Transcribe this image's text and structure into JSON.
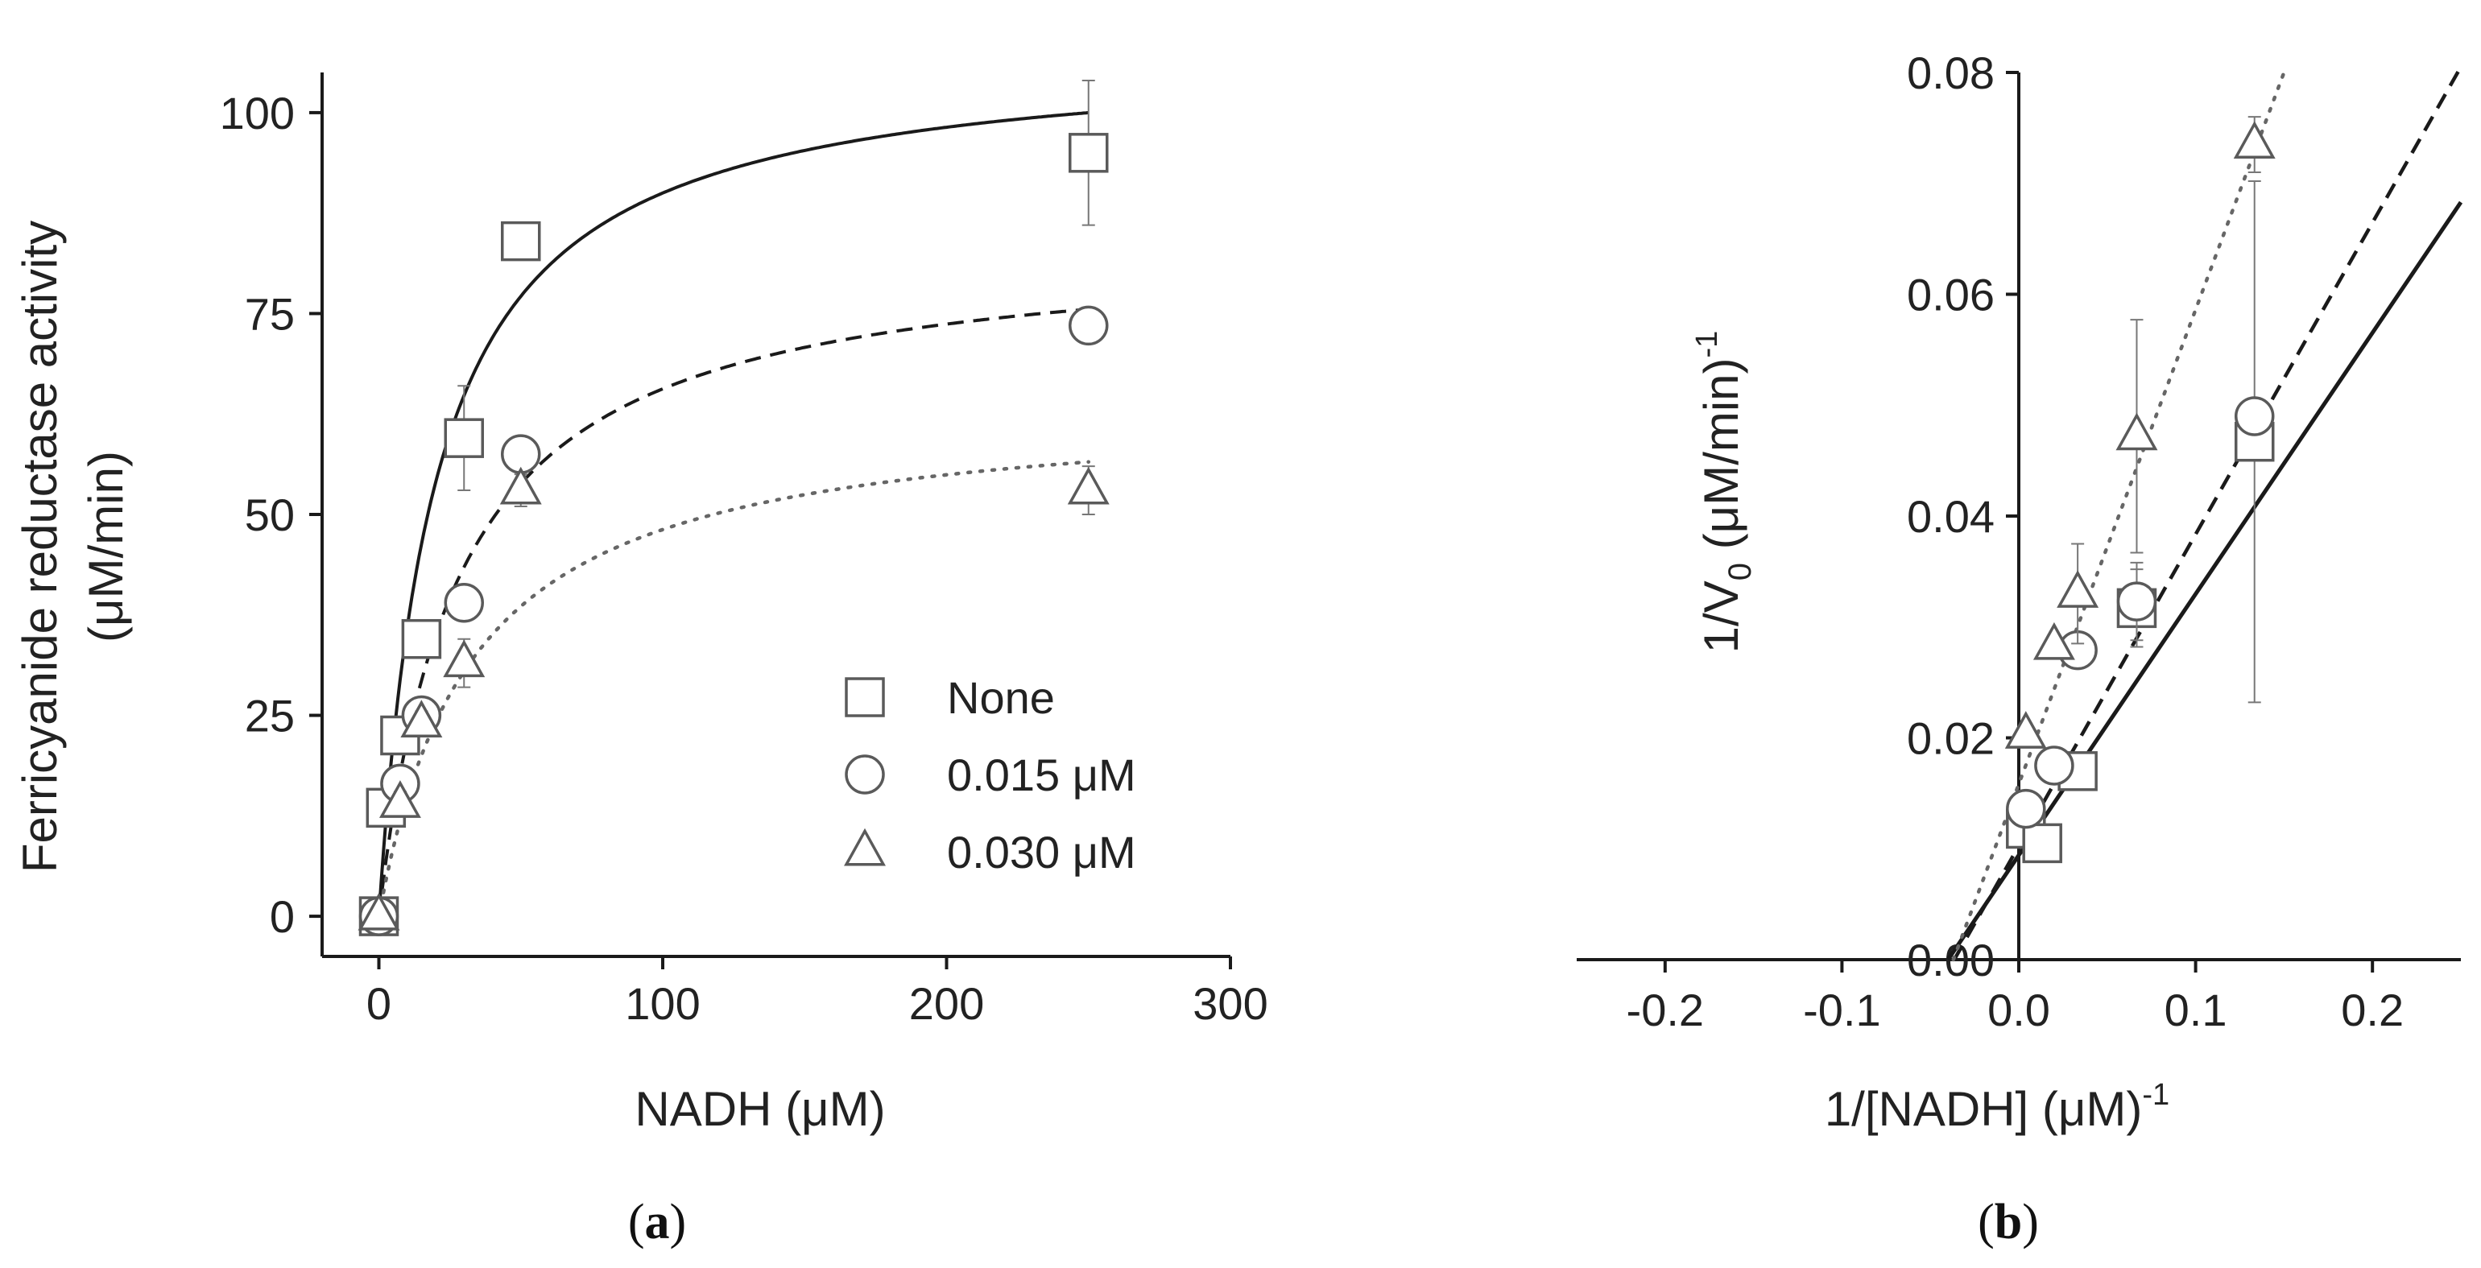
{
  "chart_data": [
    {
      "panel": "(a)",
      "panel_letter": "a",
      "type": "scatter",
      "title": "",
      "xlabel": "NADH (μM)",
      "ylabel_line1": "Ferricyanide reductase activity",
      "ylabel_line2": "(μM/min)",
      "xlim": [
        -20,
        300
      ],
      "ylim": [
        -5,
        105
      ],
      "xticks": [
        0,
        100,
        200,
        300
      ],
      "yticks": [
        0,
        25,
        50,
        75,
        100
      ],
      "grid": false,
      "legend_position": "center-right",
      "series": [
        {
          "name": "None",
          "marker": "square",
          "fit_line": "solid",
          "fit_vmax": 108,
          "fit_km": 20,
          "points": [
            {
              "x": 0,
              "y": 0,
              "err": 1
            },
            {
              "x": 2.5,
              "y": 13.5,
              "err": 1
            },
            {
              "x": 7.5,
              "y": 22.5,
              "err": 1.5
            },
            {
              "x": 15,
              "y": 34.5,
              "err": 1.5
            },
            {
              "x": 30,
              "y": 59.5,
              "err": 6.5
            },
            {
              "x": 50,
              "y": 84,
              "err": 1
            },
            {
              "x": 250,
              "y": 95,
              "err": 9
            }
          ]
        },
        {
          "name": "0.015 μM",
          "marker": "circle",
          "fit_line": "dashed",
          "fit_vmax": 84,
          "fit_km": 28,
          "points": [
            {
              "x": 0,
              "y": 0,
              "err": 1
            },
            {
              "x": 7.5,
              "y": 16.5,
              "err": 1.5
            },
            {
              "x": 15,
              "y": 25,
              "err": 1.5
            },
            {
              "x": 30,
              "y": 39,
              "err": 2
            },
            {
              "x": 50,
              "y": 57.5,
              "err": 2
            },
            {
              "x": 250,
              "y": 73.5,
              "err": 2
            }
          ]
        },
        {
          "name": "0.030 μM",
          "marker": "triangle",
          "fit_line": "dotted",
          "fit_vmax": 64,
          "fit_km": 33,
          "points": [
            {
              "x": 0,
              "y": 0,
              "err": 1
            },
            {
              "x": 7.5,
              "y": 14,
              "err": 1.5
            },
            {
              "x": 15,
              "y": 24,
              "err": 1.5
            },
            {
              "x": 30,
              "y": 31.5,
              "err": 3
            },
            {
              "x": 50,
              "y": 53,
              "err": 2
            },
            {
              "x": 250,
              "y": 53,
              "err": 3
            }
          ]
        }
      ]
    },
    {
      "panel": "(b)",
      "panel_letter": "b",
      "type": "scatter",
      "title": "",
      "xlabel_main": "1/[NADH] (μM)",
      "xlabel_sup": "-1",
      "ylabel_main": "1/V",
      "ylabel_sub": "0",
      "ylabel_rest": " (μM/min)",
      "ylabel_sup": "-1",
      "xlim": [
        -0.25,
        0.25
      ],
      "ylim": [
        0,
        0.08
      ],
      "xticks": [
        -0.2,
        -0.1,
        0.0,
        0.1,
        0.2
      ],
      "xtick_labels": [
        "-0.2",
        "-0.1",
        "0.0",
        "0.1",
        "0.2"
      ],
      "yticks": [
        0.0,
        0.02,
        0.04,
        0.06,
        0.08
      ],
      "ytick_labels": [
        "0.00",
        "0.02",
        "0.04",
        "0.06",
        "0.08"
      ],
      "grid": false,
      "series": [
        {
          "marker": "square",
          "fit_line": "solid",
          "line_x": [
            -0.04,
            0.25
          ],
          "line_y": [
            0.0,
            0.0683
          ],
          "points": [
            {
              "x": 0.004,
              "y": 0.0118,
              "err": 0.001
            },
            {
              "x": 0.0133,
              "y": 0.0105,
              "err": 0.001
            },
            {
              "x": 0.0333,
              "y": 0.017,
              "err": 0.0015
            },
            {
              "x": 0.0667,
              "y": 0.0317,
              "err": 0.0035
            },
            {
              "x": 0.1333,
              "y": 0.0467,
              "err": 0.0235
            }
          ]
        },
        {
          "marker": "circle",
          "fit_line": "dashed",
          "line_x": [
            -0.0365,
            0.25
          ],
          "line_y": [
            0.0,
            0.0805
          ],
          "points": [
            {
              "x": 0.004,
              "y": 0.0136,
              "err": 0.0005
            },
            {
              "x": 0.02,
              "y": 0.0175,
              "err": 0.001
            },
            {
              "x": 0.0333,
              "y": 0.0279,
              "err": 0.001
            },
            {
              "x": 0.0667,
              "y": 0.0323,
              "err": 0.0035
            },
            {
              "x": 0.1333,
              "y": 0.049,
              "err": 0.001
            }
          ]
        },
        {
          "marker": "triangle",
          "fit_line": "dotted",
          "line_x": [
            -0.037,
            0.15
          ],
          "line_y": [
            0.0,
            0.08
          ],
          "points": [
            {
              "x": 0.004,
              "y": 0.0203,
              "err": 0.001
            },
            {
              "x": 0.02,
              "y": 0.0283,
              "err": 0.001
            },
            {
              "x": 0.0333,
              "y": 0.033,
              "err": 0.0045
            },
            {
              "x": 0.0667,
              "y": 0.0472,
              "err": 0.0105
            },
            {
              "x": 0.1333,
              "y": 0.0735,
              "err": 0.0025
            }
          ]
        }
      ]
    }
  ]
}
